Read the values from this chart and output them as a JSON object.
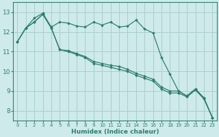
{
  "xlabel": "Humidex (Indice chaleur)",
  "background_color": "#ceeaea",
  "grid_color": "#aacece",
  "line_color": "#2e7d6e",
  "xlim": [
    -0.5,
    23.5
  ],
  "ylim": [
    7.5,
    13.5
  ],
  "yticks": [
    8,
    9,
    10,
    11,
    12,
    13
  ],
  "xticks": [
    0,
    1,
    2,
    3,
    4,
    5,
    6,
    7,
    8,
    9,
    10,
    11,
    12,
    13,
    14,
    15,
    16,
    17,
    18,
    19,
    20,
    21,
    22,
    23
  ],
  "series": [
    [
      11.5,
      12.2,
      12.7,
      12.95,
      12.25,
      12.5,
      12.45,
      12.3,
      12.25,
      12.5,
      12.35,
      12.5,
      12.25,
      12.3,
      12.6,
      12.15,
      11.95,
      10.7,
      9.85,
      9.0,
      8.75,
      9.1,
      8.65,
      7.65
    ],
    [
      11.5,
      12.2,
      12.5,
      12.9,
      12.2,
      11.1,
      11.05,
      10.9,
      10.75,
      10.5,
      10.4,
      10.3,
      10.25,
      10.1,
      9.9,
      9.75,
      9.6,
      9.2,
      9.0,
      9.0,
      8.75,
      9.1,
      8.65,
      7.65
    ],
    [
      11.5,
      12.2,
      12.5,
      12.9,
      12.2,
      11.1,
      11.0,
      10.85,
      10.7,
      10.4,
      10.3,
      10.2,
      10.1,
      10.0,
      9.8,
      9.65,
      9.5,
      9.1,
      8.9,
      8.9,
      8.7,
      9.05,
      8.6,
      7.65
    ]
  ]
}
